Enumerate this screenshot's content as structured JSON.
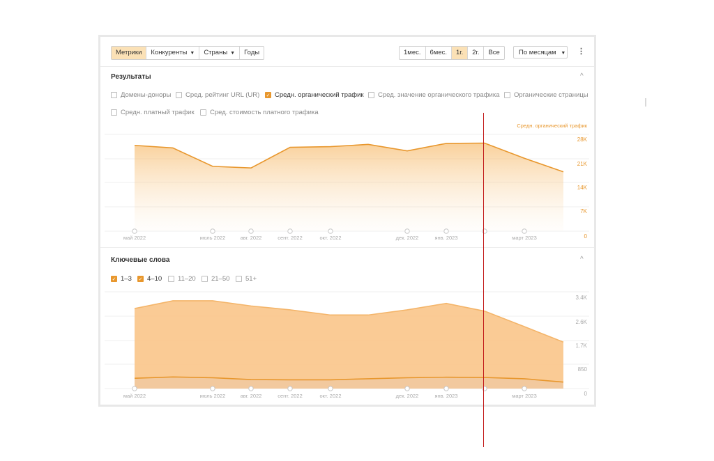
{
  "toolbar": {
    "tabs": [
      {
        "label": "Метрики",
        "active": true
      },
      {
        "label": "Конкуренты",
        "caret": true
      },
      {
        "label": "Страны",
        "caret": true
      },
      {
        "label": "Годы"
      }
    ],
    "periods": [
      {
        "label": "1мес."
      },
      {
        "label": "6мес."
      },
      {
        "label": "1г.",
        "active": true
      },
      {
        "label": "2г."
      },
      {
        "label": "Все"
      }
    ],
    "granularity": {
      "label": "По месяцам",
      "caret": "▼"
    },
    "more_icon": "⋮"
  },
  "results": {
    "title": "Результаты",
    "collapse_icon": "^",
    "options": [
      {
        "label": "Домены-доноры",
        "checked": false
      },
      {
        "label": "Сред. рейтинг URL (UR)",
        "checked": false
      },
      {
        "label": "Средн. органический трафик",
        "checked": true
      },
      {
        "label": "Сред. значение органического трафика",
        "checked": false
      },
      {
        "label": "Органические страницы",
        "checked": false
      },
      {
        "label": "Средн. платный трафик",
        "checked": false
      },
      {
        "label": "Сред. стоимость платного трафика",
        "checked": false
      }
    ]
  },
  "keywords": {
    "title": "Ключевые слова",
    "collapse_icon": "^",
    "options": [
      {
        "label": "1–3",
        "checked": true
      },
      {
        "label": "4–10",
        "checked": true
      },
      {
        "label": "11–20",
        "checked": false
      },
      {
        "label": "21–50",
        "checked": false
      },
      {
        "label": "51+",
        "checked": false
      }
    ]
  },
  "chart_data": [
    {
      "type": "area",
      "series": [
        {
          "name": "Средн. органический трафик",
          "color": "#e8972d",
          "values": [
            26600,
            25800,
            20100,
            19600,
            26000,
            26200,
            26900,
            24900,
            27200,
            27300,
            22600,
            18400
          ]
        }
      ],
      "ylim": [
        0,
        30000
      ],
      "y_ticks": [
        "28K",
        "21K",
        "14K",
        "7K",
        "0"
      ],
      "x_ticks": [
        "май 2022",
        "июль 2022",
        "авг. 2022",
        "сент. 2022",
        "окт. 2022",
        "дек. 2022",
        "янв. 2023",
        "март 2023"
      ],
      "grid": true,
      "legend": "top-right"
    },
    {
      "type": "area",
      "series": [
        {
          "name": "4–10",
          "color": "#f4b56a",
          "values": [
            3100,
            3400,
            3400,
            3200,
            3050,
            2850,
            2850,
            3050,
            3300,
            3000,
            2400,
            1800
          ]
        },
        {
          "name": "1–3",
          "color": "#e8972d",
          "values": [
            400,
            450,
            420,
            350,
            340,
            340,
            380,
            420,
            440,
            430,
            380,
            250
          ]
        }
      ],
      "ylim": [
        0,
        3750
      ],
      "y_ticks": [
        "3.4K",
        "2.6K",
        "1.7K",
        "850",
        "0"
      ],
      "x_ticks": [
        "май 2022",
        "июль 2022",
        "авг. 2022",
        "сент. 2022",
        "окт. 2022",
        "дек. 2022",
        "янв. 2023",
        "март 2023"
      ],
      "grid": true
    }
  ]
}
